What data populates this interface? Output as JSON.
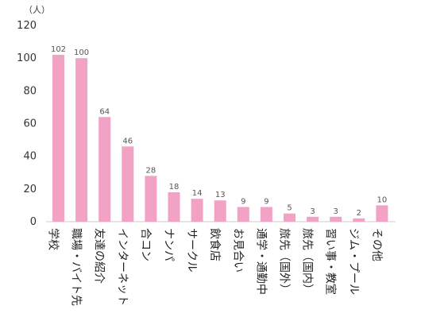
{
  "chart_data": {
    "type": "bar",
    "unit": "（人）",
    "categories": [
      "学校",
      "職場・バイト先",
      "友達の紹介",
      "インターネット",
      "合コン",
      "ナンパ",
      "サークル",
      "飲食店",
      "お見合い",
      "通学・通勤中",
      "旅先（国外）",
      "旅先（国内）",
      "習い事・教室",
      "ジム・プール",
      "その他"
    ],
    "values": [
      102,
      100,
      64,
      46,
      28,
      18,
      14,
      13,
      9,
      9,
      5,
      3,
      3,
      2,
      10
    ],
    "yticks": [
      0,
      20,
      40,
      60,
      80,
      100,
      120
    ],
    "ylim": [
      0,
      120
    ],
    "bar_color": "#f2a2c4"
  }
}
